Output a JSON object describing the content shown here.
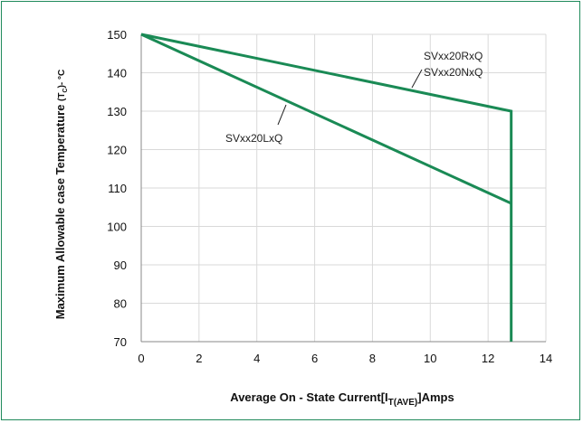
{
  "chart_data": {
    "type": "line",
    "title": "",
    "xlabel": {
      "prefix": "Average On - State Current[I",
      "subscript": "T(AVE)",
      "suffix": "]Amps"
    },
    "ylabel": {
      "main": "Maximum Allowable case Temperature",
      "prefix": "(T",
      "subscript": "C",
      "suffix": ")- °C"
    },
    "xlim": [
      0,
      14
    ],
    "ylim": [
      70,
      150
    ],
    "xticks": [
      0,
      2,
      4,
      6,
      8,
      10,
      12,
      14
    ],
    "yticks": [
      70,
      80,
      90,
      100,
      110,
      120,
      130,
      140,
      150
    ],
    "grid": true,
    "line_color": "#1a8a55",
    "series": [
      {
        "name": "SVxx20RxQ / SVxx20NxQ",
        "x": [
          0,
          12.8,
          12.8
        ],
        "y": [
          150,
          130,
          70
        ]
      },
      {
        "name": "SVxx20LxQ",
        "x": [
          0,
          12.8
        ],
        "y": [
          150,
          106
        ]
      }
    ],
    "annotations": [
      {
        "id": "rn-line1",
        "text": "SVxx20RxQ"
      },
      {
        "id": "rn-line2",
        "text": "SVxx20NxQ"
      },
      {
        "id": "lx",
        "text": "SVxx20LxQ"
      }
    ]
  }
}
